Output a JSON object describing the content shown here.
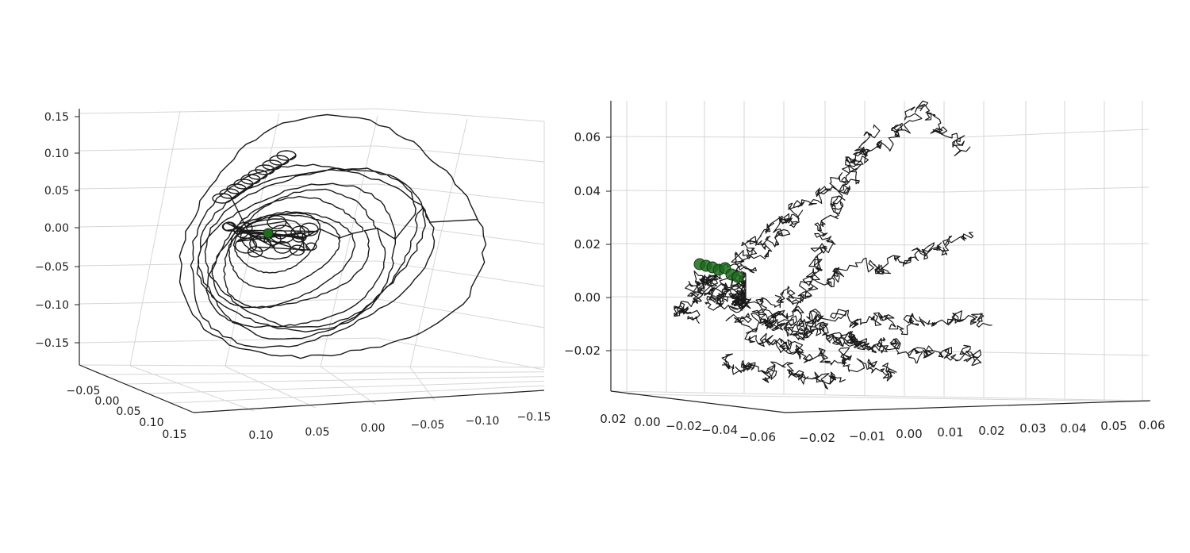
{
  "chart_data": [
    {
      "type": "line3d",
      "title": "",
      "xlabel": "",
      "ylabel": "",
      "zlabel": "",
      "x_ticks": [
        "0.10",
        "0.05",
        "0.00",
        "−0.05",
        "−0.10",
        "−0.15"
      ],
      "y_ticks": [
        "−0.05",
        "0.00",
        "0.05",
        "0.10",
        "0.15"
      ],
      "z_ticks": [
        "0.15",
        "0.10",
        "0.05",
        "0.00",
        "−0.05",
        "−0.10",
        "−0.15"
      ],
      "grid": true,
      "series": [
        {
          "kind": "trajectory",
          "color": "#1a1a1a",
          "description_values": "orbiting loops around origin, radius ~0.02–0.15"
        },
        {
          "kind": "markers",
          "color": "#1f6b1f",
          "values": [
            [
              0.0,
              0.0,
              -0.01
            ]
          ]
        }
      ]
    },
    {
      "type": "line3d",
      "title": "",
      "xlabel": "",
      "ylabel": "",
      "zlabel": "",
      "x_ticks": [
        "−0.02",
        "−0.01",
        "0.00",
        "0.01",
        "0.02",
        "0.03",
        "0.04",
        "0.05",
        "0.06"
      ],
      "y_ticks": [
        "0.02",
        "0.00",
        "−0.02",
        "−0.04",
        "−0.06"
      ],
      "z_ticks": [
        "0.06",
        "0.04",
        "0.02",
        "0.00",
        "−0.02"
      ],
      "grid": true,
      "series": [
        {
          "kind": "random-walk",
          "color": "#1a1a1a"
        },
        {
          "kind": "markers",
          "color": "#1f6b1f",
          "values": [
            [
              -0.02,
              0.02,
              0.012
            ],
            [
              -0.015,
              0.02,
              0.01
            ],
            [
              -0.01,
              0.02,
              0.008
            ]
          ]
        }
      ]
    }
  ]
}
